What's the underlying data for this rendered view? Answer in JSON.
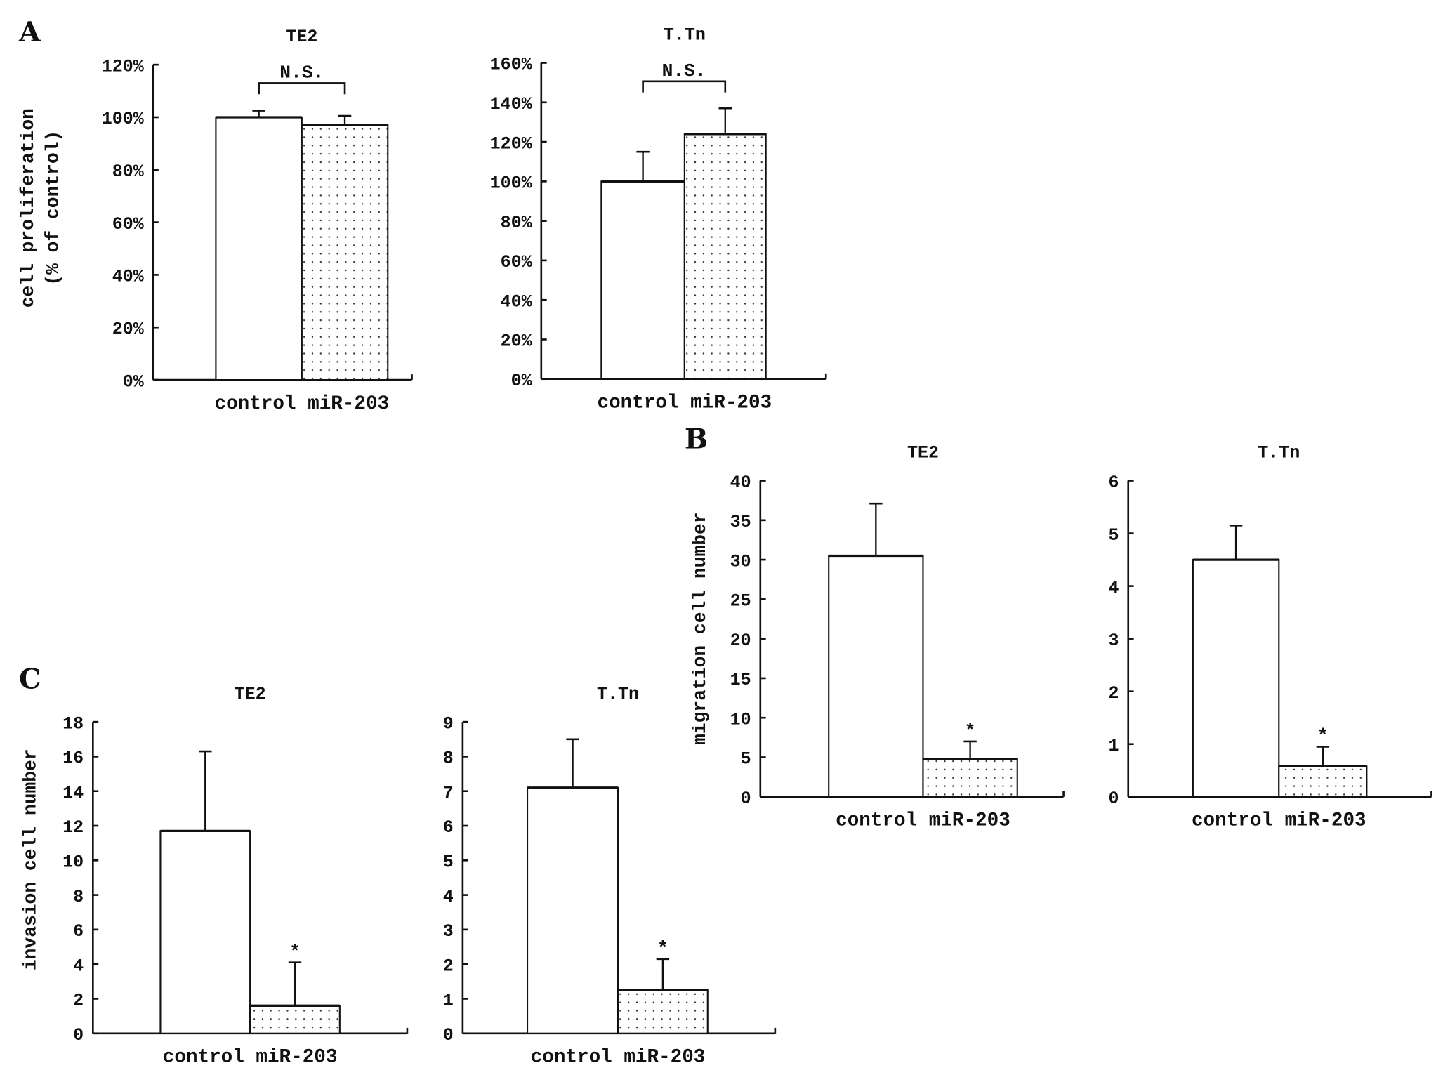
{
  "panel_letters": [
    "A",
    "B",
    "C"
  ],
  "chart_data": [
    {
      "id": "A-TE2",
      "panel": "A",
      "type": "bar",
      "title": "TE2",
      "xlabel": "control miR-203",
      "ylabel": "cell proliferation",
      "ylabel2": "(% of control)",
      "categories": [
        "control",
        "miR-203"
      ],
      "values": [
        100,
        97
      ],
      "errors": [
        2.5,
        3.5
      ],
      "patterns": [
        "white",
        "dotted"
      ],
      "ylim": [
        0,
        120
      ],
      "yticks": [
        "0%",
        "20%",
        "40%",
        "60%",
        "80%",
        "100%",
        "120%"
      ],
      "tickstep": 20,
      "annotation": "N.S.",
      "annotation_type": "bracket"
    },
    {
      "id": "A-TTn",
      "panel": "A",
      "type": "bar",
      "title": "T.Tn",
      "xlabel": "control miR-203",
      "ylabel": "",
      "categories": [
        "control",
        "miR-203"
      ],
      "values": [
        100,
        124
      ],
      "errors": [
        15,
        13
      ],
      "patterns": [
        "white",
        "dotted"
      ],
      "ylim": [
        0,
        160
      ],
      "yticks": [
        "0%",
        "20%",
        "40%",
        "60%",
        "80%",
        "100%",
        "120%",
        "140%",
        "160%"
      ],
      "tickstep": 20,
      "annotation": "N.S.",
      "annotation_type": "bracket"
    },
    {
      "id": "B-TE2",
      "panel": "B",
      "type": "bar",
      "title": "TE2",
      "xlabel": "control miR-203",
      "ylabel": "migration cell number",
      "categories": [
        "control",
        "miR-203"
      ],
      "values": [
        30.5,
        4.8
      ],
      "errors": [
        6.6,
        2.2
      ],
      "patterns": [
        "white",
        "dotted"
      ],
      "ylim": [
        0,
        40
      ],
      "yticks": [
        "0",
        "5",
        "10",
        "15",
        "20",
        "25",
        "30",
        "35",
        "40"
      ],
      "tickstep": 5,
      "annotation": "*",
      "annotation_type": "star"
    },
    {
      "id": "B-TTn",
      "panel": "B",
      "type": "bar",
      "title": "T.Tn",
      "xlabel": "control miR-203",
      "ylabel": "",
      "categories": [
        "control",
        "miR-203"
      ],
      "values": [
        4.5,
        0.58
      ],
      "errors": [
        0.65,
        0.37
      ],
      "patterns": [
        "white",
        "dotted"
      ],
      "ylim": [
        0,
        6
      ],
      "yticks": [
        "0",
        "1",
        "2",
        "3",
        "4",
        "5",
        "6"
      ],
      "tickstep": 1,
      "annotation": "*",
      "annotation_type": "star"
    },
    {
      "id": "C-TE2",
      "panel": "C",
      "type": "bar",
      "title": "TE2",
      "xlabel": "control miR-203",
      "ylabel": "invasion cell number",
      "categories": [
        "control",
        "miR-203"
      ],
      "values": [
        11.7,
        1.6
      ],
      "errors": [
        4.6,
        2.5
      ],
      "patterns": [
        "white",
        "dotted"
      ],
      "ylim": [
        0,
        18
      ],
      "yticks": [
        "0",
        "2",
        "4",
        "6",
        "8",
        "10",
        "12",
        "14",
        "16",
        "18"
      ],
      "tickstep": 2,
      "annotation": "*",
      "annotation_type": "star"
    },
    {
      "id": "C-TTn",
      "panel": "C",
      "type": "bar",
      "title": "T.Tn",
      "xlabel": "control miR-203",
      "ylabel": "",
      "categories": [
        "control",
        "miR-203"
      ],
      "values": [
        7.1,
        1.25
      ],
      "errors": [
        1.4,
        0.9
      ],
      "patterns": [
        "white",
        "dotted"
      ],
      "ylim": [
        0,
        9
      ],
      "yticks": [
        "0",
        "1",
        "2",
        "3",
        "4",
        "5",
        "6",
        "7",
        "8",
        "9"
      ],
      "tickstep": 1,
      "annotation": "*",
      "annotation_type": "star"
    }
  ]
}
